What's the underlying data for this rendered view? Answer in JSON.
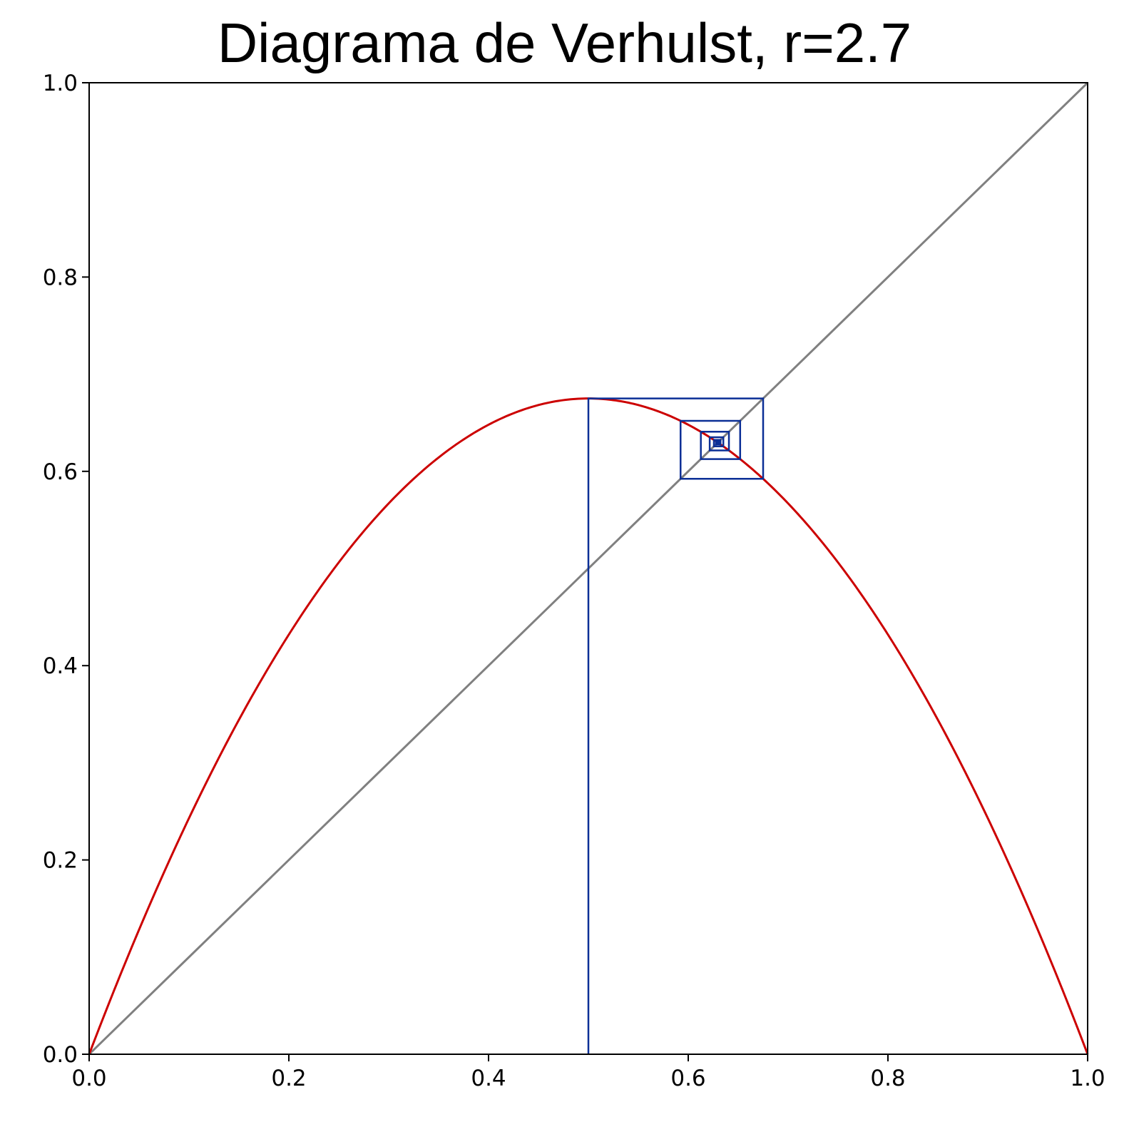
{
  "chart_data": {
    "type": "line",
    "title": "Diagrama de Verhulst, r=2.7",
    "xlabel": "",
    "ylabel": "",
    "xlim": [
      0.0,
      1.0
    ],
    "ylim": [
      0.0,
      1.0
    ],
    "grid": false,
    "x_ticks": [
      "0.0",
      "0.2",
      "0.4",
      "0.6",
      "0.8",
      "1.0"
    ],
    "y_ticks": [
      "0.0",
      "0.2",
      "0.4",
      "0.6",
      "0.8",
      "1.0"
    ],
    "r": 2.7,
    "x0": 0.5,
    "iterations": 40,
    "series": [
      {
        "role": "logistic-curve",
        "color": "#cc0000",
        "formula": "y = r*x*(1-x)"
      },
      {
        "role": "identity-line",
        "color": "#808080",
        "points": [
          [
            0,
            0
          ],
          [
            1,
            1
          ]
        ]
      },
      {
        "role": "cobweb",
        "color": "#0b2f96"
      }
    ]
  }
}
